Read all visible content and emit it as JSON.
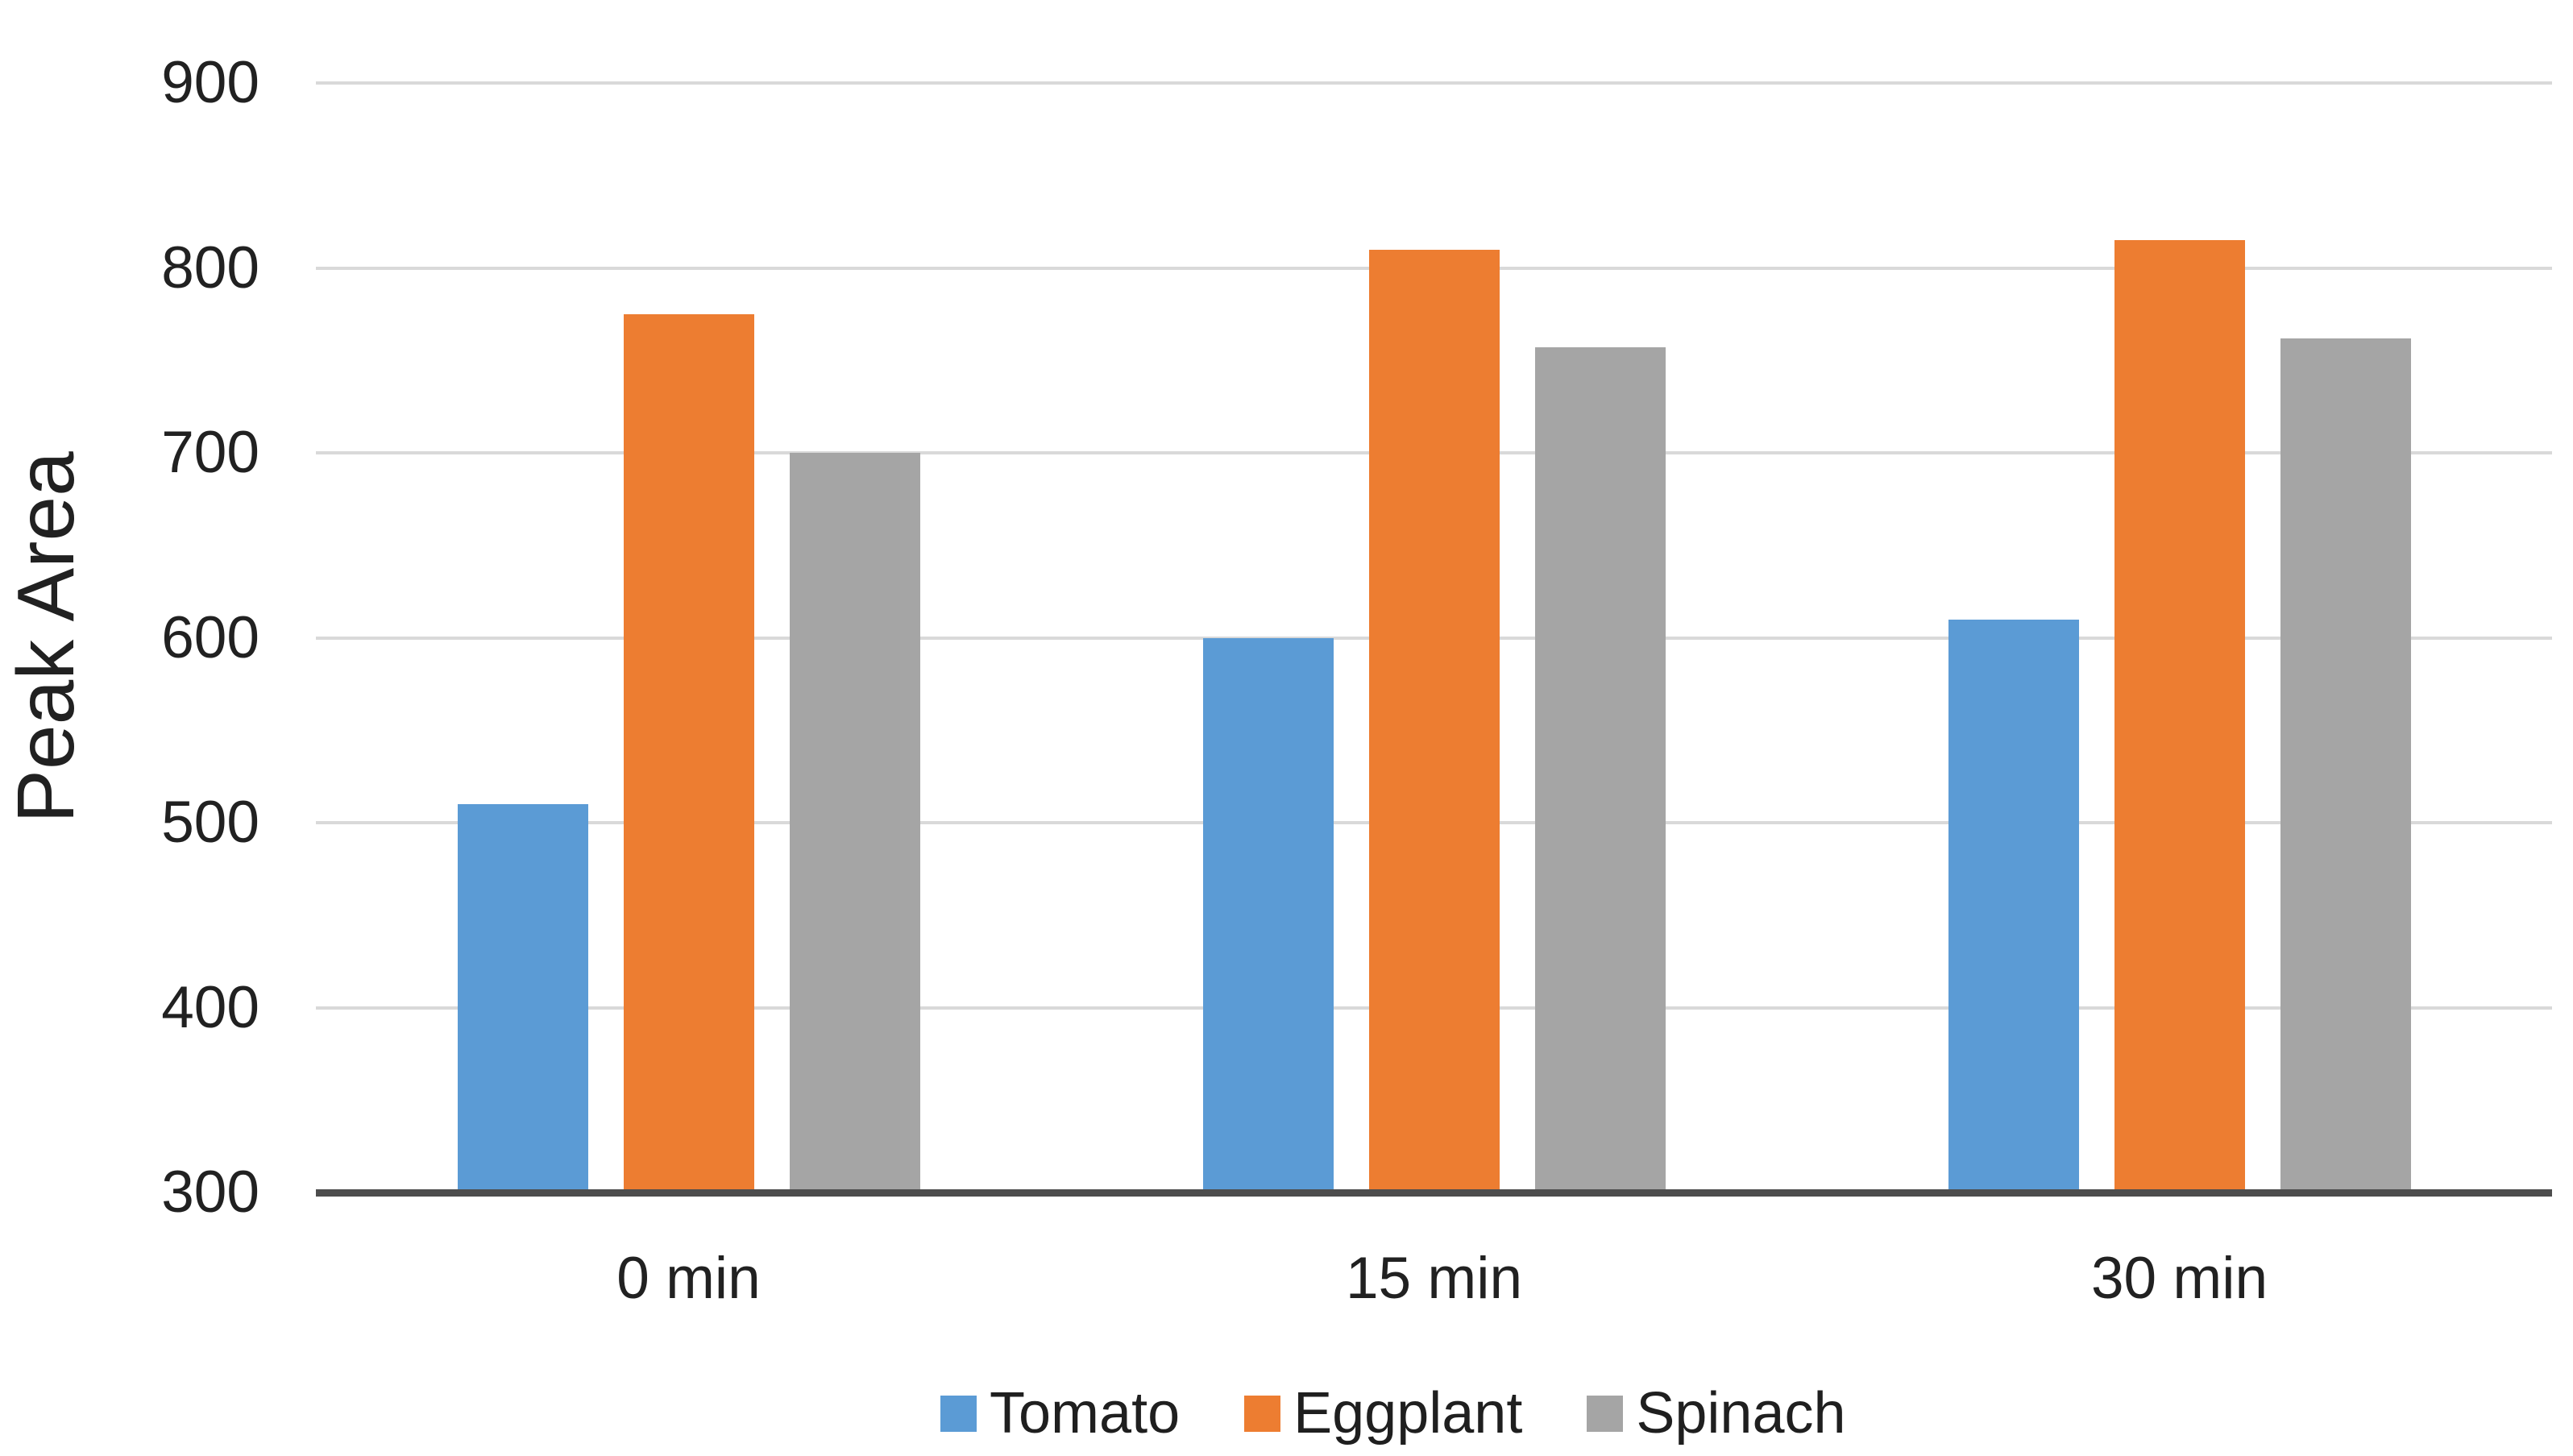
{
  "chart_data": {
    "type": "bar",
    "title": "",
    "xlabel": "",
    "ylabel": "Peak Area",
    "categories": [
      "0 min",
      "15 min",
      "30 min"
    ],
    "series": [
      {
        "name": "Tomato",
        "color": "#5B9BD5",
        "values": [
          510,
          600,
          610
        ]
      },
      {
        "name": "Eggplant",
        "color": "#ED7D31",
        "values": [
          775,
          810,
          815
        ]
      },
      {
        "name": "Spinach",
        "color": "#A5A5A5",
        "values": [
          700,
          757,
          762
        ]
      }
    ],
    "ylim": [
      300,
      900
    ],
    "ytick_step": 100,
    "yticks": [
      300,
      400,
      500,
      600,
      700,
      800,
      900
    ],
    "grid": "horizontal",
    "legend_position": "bottom",
    "colors": {
      "gridline": "#d9d9d9",
      "axis_line": "#4d4d4d",
      "text": "#212121"
    }
  }
}
